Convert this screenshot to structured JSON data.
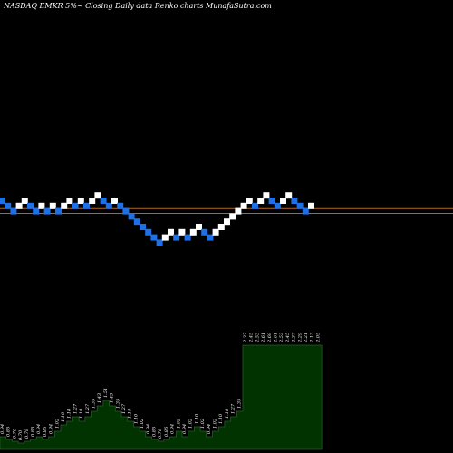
{
  "title": "NASDAQ EMKR 5%~  Closing Daily data  Renko  charts MunafaSutra.com",
  "colors": {
    "background": "#000000",
    "up_brick": "#ffffff",
    "down_brick": "#1f6fe6",
    "reference_lines": "#b5651d",
    "volume_fill": "#003300",
    "volume_stroke": "#2a5a2a"
  },
  "chart_data": [
    {
      "type": "renko",
      "title": "NASDAQ EMKR 5%~  Closing Daily data  Renko  charts MunafaSutra.com",
      "bricks": [
        {
          "level": 0,
          "dir": "down"
        },
        {
          "level": 1,
          "dir": "down"
        },
        {
          "level": 2,
          "dir": "down"
        },
        {
          "level": 1,
          "dir": "up"
        },
        {
          "level": 0,
          "dir": "up"
        },
        {
          "level": 1,
          "dir": "down"
        },
        {
          "level": 2,
          "dir": "down"
        },
        {
          "level": 1,
          "dir": "up"
        },
        {
          "level": 2,
          "dir": "down"
        },
        {
          "level": 1,
          "dir": "up"
        },
        {
          "level": 2,
          "dir": "down"
        },
        {
          "level": 1,
          "dir": "up"
        },
        {
          "level": 0,
          "dir": "up"
        },
        {
          "level": 1,
          "dir": "down"
        },
        {
          "level": 0,
          "dir": "up"
        },
        {
          "level": 1,
          "dir": "down"
        },
        {
          "level": 0,
          "dir": "up"
        },
        {
          "level": -1,
          "dir": "up"
        },
        {
          "level": 0,
          "dir": "down"
        },
        {
          "level": 1,
          "dir": "down"
        },
        {
          "level": 0,
          "dir": "up"
        },
        {
          "level": 1,
          "dir": "down"
        },
        {
          "level": 2,
          "dir": "down"
        },
        {
          "level": 3,
          "dir": "down"
        },
        {
          "level": 4,
          "dir": "down"
        },
        {
          "level": 5,
          "dir": "down"
        },
        {
          "level": 6,
          "dir": "down"
        },
        {
          "level": 7,
          "dir": "down"
        },
        {
          "level": 8,
          "dir": "down"
        },
        {
          "level": 7,
          "dir": "up"
        },
        {
          "level": 6,
          "dir": "up"
        },
        {
          "level": 7,
          "dir": "down"
        },
        {
          "level": 6,
          "dir": "up"
        },
        {
          "level": 7,
          "dir": "down"
        },
        {
          "level": 6,
          "dir": "up"
        },
        {
          "level": 5,
          "dir": "up"
        },
        {
          "level": 6,
          "dir": "down"
        },
        {
          "level": 7,
          "dir": "down"
        },
        {
          "level": 6,
          "dir": "up"
        },
        {
          "level": 5,
          "dir": "up"
        },
        {
          "level": 4,
          "dir": "up"
        },
        {
          "level": 3,
          "dir": "up"
        },
        {
          "level": 2,
          "dir": "up"
        },
        {
          "level": 1,
          "dir": "up"
        },
        {
          "level": 0,
          "dir": "up"
        },
        {
          "level": 1,
          "dir": "down"
        },
        {
          "level": 0,
          "dir": "up"
        },
        {
          "level": -1,
          "dir": "up"
        },
        {
          "level": 0,
          "dir": "down"
        },
        {
          "level": 1,
          "dir": "down"
        },
        {
          "level": 0,
          "dir": "up"
        },
        {
          "level": -1,
          "dir": "up"
        },
        {
          "level": 0,
          "dir": "down"
        },
        {
          "level": 1,
          "dir": "down"
        },
        {
          "level": 2,
          "dir": "down"
        },
        {
          "level": 1,
          "dir": "up"
        }
      ],
      "reference_lines": [
        {
          "level": 1.6
        },
        {
          "level": 2.5
        }
      ],
      "volume_labels": [
        "0.94",
        "0.86",
        "0.78",
        "0.70",
        "0.78",
        "0.86",
        "0.94",
        "0.86",
        "0.94",
        "1.02",
        "1.10",
        "1.18",
        "1.27",
        "1.18",
        "1.27",
        "1.35",
        "1.43",
        "1.51",
        "1.43",
        "1.35",
        "1.27",
        "1.18",
        "1.10",
        "1.02",
        "0.94",
        "0.86",
        "0.78",
        "0.86",
        "0.94",
        "1.02",
        "0.94",
        "1.02",
        "1.10",
        "1.02",
        "0.94",
        "1.02",
        "1.10",
        "1.18",
        "1.27",
        "1.35",
        "2.37",
        "2.45",
        "2.53",
        "2.61",
        "2.69",
        "2.61",
        "2.53",
        "2.45",
        "2.37",
        "2.29",
        "2.21",
        "2.13",
        "2.05"
      ],
      "volume": [
        14,
        11,
        9,
        7,
        9,
        11,
        14,
        11,
        14,
        20,
        27,
        31,
        36,
        31,
        36,
        42,
        48,
        54,
        48,
        42,
        36,
        31,
        25,
        20,
        14,
        11,
        9,
        11,
        14,
        20,
        14,
        20,
        25,
        20,
        14,
        20,
        25,
        31,
        36,
        42,
        115,
        115,
        115,
        115,
        115,
        115,
        115,
        115,
        115,
        115,
        115,
        115,
        115
      ]
    }
  ]
}
